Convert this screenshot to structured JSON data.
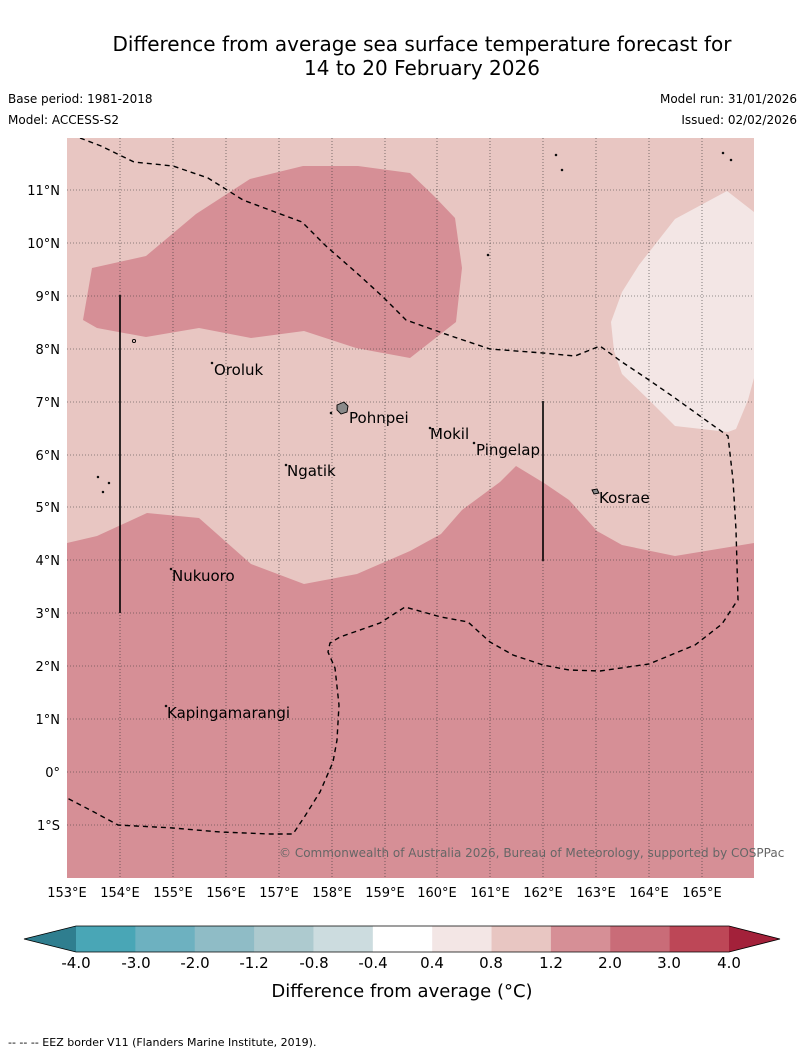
{
  "header": {
    "title_line1": "Difference from average sea surface temperature forecast for",
    "title_line2": "14 to 20 February 2026",
    "base_period": "Base period: 1981-2018",
    "model": "Model: ACCESS-S2",
    "model_run": "Model run: 31/01/2026",
    "issued": "Issued: 02/02/2026"
  },
  "map": {
    "lat_labels": [
      "11°N",
      "10°N",
      "9°N",
      "8°N",
      "7°N",
      "6°N",
      "5°N",
      "4°N",
      "3°N",
      "2°N",
      "1°N",
      "0°",
      "1°S"
    ],
    "lon_labels": [
      "153°E",
      "154°E",
      "155°E",
      "156°E",
      "157°E",
      "158°E",
      "159°E",
      "160°E",
      "161°E",
      "162°E",
      "163°E",
      "164°E",
      "165°E"
    ],
    "places": [
      {
        "name": "Oroluk"
      },
      {
        "name": "Pohnpei"
      },
      {
        "name": "Mokil"
      },
      {
        "name": "Pingelap"
      },
      {
        "name": "Ngatik"
      },
      {
        "name": "Kosrae"
      },
      {
        "name": "Nukuoro"
      },
      {
        "name": "Kapingamarangi"
      }
    ],
    "copyright": "© Commonwealth of Australia 2026, Bureau of Meteorology, supported by COSPPac",
    "colors": {
      "anomaly_0p8_1p2": "#e8c6c2",
      "anomaly_1p2_2p0": "#d68f96",
      "anomaly_0p4_0p8": "#f3e6e5",
      "land": "#8a8a8a"
    }
  },
  "colorbar": {
    "ticks": [
      "-4.0",
      "-3.0",
      "-2.0",
      "-1.2",
      "-0.8",
      "-0.4",
      "0.4",
      "0.8",
      "1.2",
      "2.0",
      "3.0",
      "4.0"
    ],
    "colors": [
      "#2f7e8f",
      "#49a6b6",
      "#6db1c0",
      "#8fbcc6",
      "#adcacf",
      "#ccdcdf",
      "#ffffff",
      "#f3e6e5",
      "#e8c6c2",
      "#d68f96",
      "#c96c78",
      "#bd4757",
      "#a3213a"
    ],
    "title": "Difference from average (°C)"
  },
  "footnote": "--  --  -- EEZ border V11 (Flanders Marine Institute, 2019)."
}
